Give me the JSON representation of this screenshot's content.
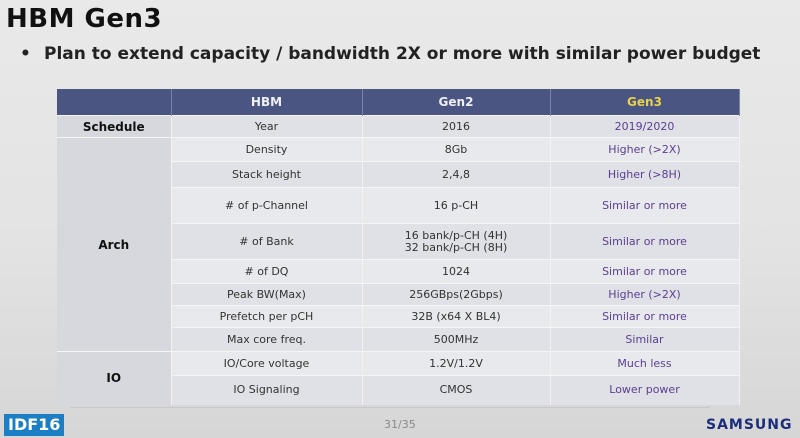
{
  "title": "HBM Gen3",
  "bullet": "Plan to extend capacity / bandwidth 2X or more with similar power budget",
  "table": {
    "headers": [
      "",
      "HBM",
      "Gen2",
      "Gen3"
    ],
    "rows": [
      {
        "category": "Schedule",
        "item": "Year",
        "gen2": "2016",
        "gen3": "2019/2020"
      },
      {
        "category": "",
        "item": "Density",
        "gen2": "8Gb",
        "gen3": "Higher (>2X)"
      },
      {
        "category": "",
        "item": "Stack height",
        "gen2": "2,4,8",
        "gen3": "Higher (>8H)"
      },
      {
        "category": "",
        "item": "# of p-Channel",
        "gen2": "16 p-CH",
        "gen3": "Similar or more"
      },
      {
        "category": "Arch",
        "item": "# of Bank",
        "gen2_line1": "16 bank/p-CH (4H)",
        "gen2_line2": "32 bank/p-CH (8H)",
        "gen3": "Similar or more"
      },
      {
        "category": "",
        "item": "# of DQ",
        "gen2": "1024",
        "gen3": "Similar or more"
      },
      {
        "category": "",
        "item": "Peak BW(Max)",
        "gen2": "256GBps(2Gbps)",
        "gen3": "Higher (>2X)"
      },
      {
        "category": "",
        "item": "Prefetch per pCH",
        "gen2": "32B (x64 X BL4)",
        "gen3": "Similar or more"
      },
      {
        "category": "",
        "item": "Max core freq.",
        "gen2": "500MHz",
        "gen3": "Similar"
      },
      {
        "category": "IO",
        "item": "IO/Core voltage",
        "gen2": "1.2V/1.2V",
        "gen3": "Much less"
      },
      {
        "category": "",
        "item": "IO Signaling",
        "gen2": "CMOS",
        "gen3": "Lower power"
      }
    ]
  },
  "footer": {
    "event_logo": "IDF16",
    "page": "31/35",
    "brand": "SAMSUNG"
  },
  "colors": {
    "header_bg": "#4a5681",
    "gen3_header_text": "#e9d24a",
    "gen3_cell_text": "#5b3f8f",
    "brand_text": "#1c2d7a",
    "idf_bg": "#1d7fc3"
  }
}
